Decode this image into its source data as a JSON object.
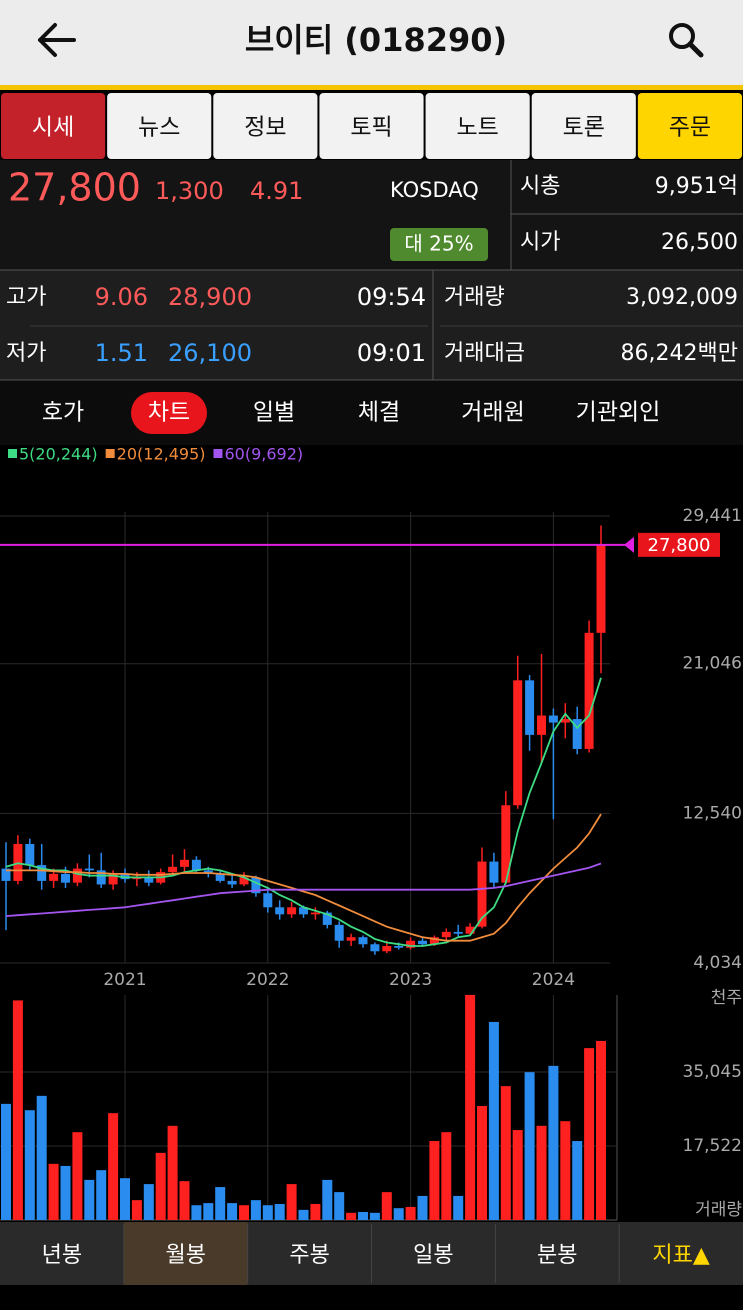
{
  "header": {
    "title": "브이티 (018290)"
  },
  "tabs": [
    "시세",
    "뉴스",
    "정보",
    "토픽",
    "노트",
    "토론",
    "주문"
  ],
  "quote": {
    "price": "27,800",
    "change": "1,300",
    "rate": "4.91",
    "market": "KOSDAQ",
    "badge": "대 25%",
    "market_cap_label": "시총",
    "market_cap": "9,951억",
    "open_label": "시가",
    "open": "26,500"
  },
  "stats": {
    "rows": [
      {
        "label": "고가",
        "pct": "9.06",
        "price": "28,900",
        "time": "09:54"
      },
      {
        "label": "저가",
        "pct": "1.51",
        "price": "26,100",
        "time": "09:01"
      }
    ],
    "volume_label": "거래량",
    "volume": "3,092,009",
    "amount_label": "거래대금",
    "amount": "86,242백만"
  },
  "subtabs": [
    "호가",
    "차트",
    "일별",
    "체결",
    "거래원",
    "기관외인"
  ],
  "chart_data": {
    "type": "candlestick",
    "categories": [
      null,
      null,
      null,
      null,
      null,
      null,
      null,
      null,
      null,
      null,
      "2021",
      null,
      null,
      null,
      null,
      null,
      null,
      null,
      null,
      null,
      null,
      null,
      "2022",
      null,
      null,
      null,
      null,
      null,
      null,
      null,
      null,
      null,
      null,
      null,
      "2023",
      null,
      null,
      null,
      null,
      null,
      null,
      null,
      null,
      null,
      null,
      null,
      "2024",
      null,
      null,
      null,
      null
    ],
    "open": [
      9400,
      8700,
      10800,
      9600,
      8700,
      9100,
      8600,
      9400,
      9300,
      8500,
      9100,
      8800,
      8900,
      8600,
      9200,
      9500,
      9900,
      9300,
      9100,
      8700,
      8500,
      8900,
      8000,
      7200,
      6800,
      7200,
      6800,
      6900,
      6200,
      5300,
      5500,
      5100,
      4700,
      5000,
      4900,
      5300,
      5100,
      5500,
      5800,
      5700,
      6100,
      9800,
      8600,
      13000,
      20100,
      17000,
      18100,
      17700,
      17900,
      16200,
      22800
    ],
    "high": [
      10900,
      11300,
      11100,
      10800,
      9400,
      9500,
      9700,
      10200,
      10300,
      9300,
      9400,
      9200,
      9300,
      9400,
      10200,
      10500,
      10100,
      9500,
      9300,
      9100,
      9200,
      9000,
      8300,
      7600,
      7500,
      7300,
      7200,
      7000,
      6400,
      5700,
      5600,
      5200,
      5300,
      5200,
      5500,
      5500,
      5600,
      6000,
      6200,
      6300,
      10600,
      10300,
      13800,
      21500,
      20400,
      21600,
      18500,
      18800,
      18600,
      23500,
      28900
    ],
    "low": [
      5900,
      8500,
      9300,
      8200,
      8300,
      8300,
      8400,
      8900,
      8300,
      8200,
      8600,
      8400,
      8400,
      8500,
      9000,
      9200,
      9100,
      8900,
      8600,
      8300,
      8400,
      7800,
      6900,
      6500,
      6600,
      6600,
      6500,
      6000,
      4900,
      5000,
      4900,
      4500,
      4600,
      4800,
      4800,
      5000,
      5000,
      5300,
      5500,
      5600,
      6000,
      8300,
      8500,
      12800,
      16100,
      15400,
      12200,
      16800,
      15900,
      16000,
      20500
    ],
    "close": [
      8700,
      10800,
      9600,
      8700,
      9100,
      8600,
      9400,
      9300,
      8500,
      9100,
      8800,
      8900,
      8600,
      9200,
      9500,
      9900,
      9300,
      9100,
      8700,
      8500,
      8900,
      8000,
      7200,
      6800,
      7200,
      6800,
      6900,
      6200,
      5300,
      5500,
      5100,
      4700,
      5000,
      4900,
      5300,
      5100,
      5500,
      5800,
      5700,
      6100,
      9800,
      8600,
      13000,
      20100,
      17000,
      18100,
      17700,
      17900,
      16200,
      22800,
      27800
    ],
    "up_color": "#ff2020",
    "down_color": "#2b8cf0",
    "last_color": "#e020e0",
    "series": [
      {
        "name": "5(20,244)",
        "color": "#3ddc84",
        "values": [
          9500,
          9700,
          9600,
          9400,
          9300,
          9300,
          9100,
          9000,
          9000,
          9000,
          8900,
          8900,
          8900,
          8900,
          9000,
          9200,
          9300,
          9400,
          9300,
          9100,
          8900,
          8600,
          8300,
          7900,
          7600,
          7200,
          7000,
          6800,
          6500,
          6100,
          5800,
          5400,
          5200,
          5100,
          5000,
          5000,
          5100,
          5200,
          5500,
          5600,
          6600,
          7200,
          8600,
          11500,
          13700,
          15400,
          17200,
          18200,
          17400,
          18100,
          20244
        ]
      },
      {
        "name": "20(12,495)",
        "color": "#f08c3c",
        "values": [
          9300,
          9300,
          9300,
          9300,
          9250,
          9200,
          9200,
          9150,
          9150,
          9100,
          9100,
          9050,
          9050,
          9050,
          9100,
          9150,
          9150,
          9150,
          9100,
          9050,
          9000,
          8900,
          8700,
          8500,
          8300,
          8100,
          7900,
          7600,
          7300,
          7000,
          6700,
          6400,
          6100,
          5900,
          5700,
          5500,
          5400,
          5300,
          5300,
          5300,
          5500,
          5700,
          6300,
          7200,
          8000,
          8700,
          9400,
          10000,
          10600,
          11400,
          12495
        ]
      },
      {
        "name": "60(9,692)",
        "color": "#a455f0",
        "values": [
          6700,
          6750,
          6800,
          6850,
          6900,
          6950,
          7000,
          7050,
          7100,
          7150,
          7200,
          7300,
          7400,
          7500,
          7600,
          7700,
          7800,
          7900,
          8000,
          8050,
          8100,
          8150,
          8200,
          8200,
          8200,
          8200,
          8200,
          8200,
          8200,
          8200,
          8200,
          8200,
          8200,
          8200,
          8200,
          8200,
          8200,
          8200,
          8200,
          8200,
          8250,
          8300,
          8400,
          8550,
          8700,
          8850,
          9000,
          9150,
          9300,
          9450,
          9692
        ]
      }
    ],
    "ylim": [
      4034,
      29441
    ],
    "yticks": [
      {
        "value": 4034,
        "label": "4,034"
      },
      {
        "value": 12540,
        "label": "12,540"
      },
      {
        "value": 21046,
        "label": "21,046"
      },
      {
        "value": 29441,
        "label": "29,441"
      }
    ],
    "grid": true,
    "volume": {
      "unit": "천주",
      "label": "거래량",
      "values": [
        27500,
        52000,
        26000,
        29400,
        13300,
        12800,
        20800,
        9500,
        11800,
        25300,
        9900,
        4700,
        8500,
        15900,
        22300,
        9200,
        3500,
        4000,
        7800,
        4000,
        3500,
        4700,
        3500,
        3800,
        8500,
        2400,
        3800,
        9500,
        6600,
        1700,
        1900,
        1700,
        6600,
        2800,
        3100,
        5700,
        18700,
        20800,
        5700,
        53300,
        27000,
        46900,
        31700,
        21300,
        35000,
        22300,
        36500,
        23400,
        18700,
        40700,
        42400
      ],
      "ylim": [
        0,
        53280
      ],
      "yticks": [
        {
          "value": 17522,
          "label": "17,522"
        },
        {
          "value": 35045,
          "label": "35,045"
        }
      ]
    }
  },
  "bottom_tabs": [
    "년봉",
    "월봉",
    "주봉",
    "일봉",
    "분봉",
    "지표▲"
  ]
}
